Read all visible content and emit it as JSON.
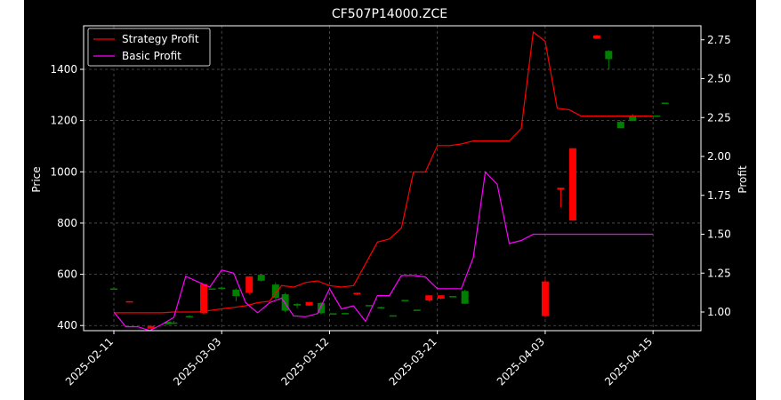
{
  "chart_data": {
    "type": "candlestick+line",
    "title": "CF507P14000.ZCE",
    "ylabel_left": "Price",
    "ylabel_right": "Profit",
    "xlabel": "",
    "grid": true,
    "legend_placement": "top-left",
    "x_tick_labels": [
      "2025-02-11",
      "2025-03-03",
      "2025-03-12",
      "2025-03-21",
      "2025-04-03",
      "2025-04-15"
    ],
    "x_tick_index": [
      0,
      9,
      18,
      27,
      36,
      45
    ],
    "left_axis": {
      "ylim": [
        380,
        1570
      ],
      "ticks": [
        400,
        600,
        800,
        1000,
        1200,
        1400
      ]
    },
    "right_axis": {
      "ylim": [
        0.88,
        2.84
      ],
      "ticks": [
        1.0,
        1.25,
        1.5,
        1.75,
        2.0,
        2.25,
        2.5,
        2.75
      ],
      "tick_labels": [
        "1.00",
        "1.25",
        "1.50",
        "1.75",
        "2.00",
        "2.25",
        "2.50",
        "2.75"
      ]
    },
    "colors": {
      "up": "#008000",
      "down": "#ff0000",
      "strategy": "#ff0000",
      "basic": "#ff00ff",
      "grid": "#555555",
      "axes": "#ffffff"
    },
    "candles": [
      [
        0,
        545,
        545,
        545,
        545
      ],
      [
        1,
        495,
        495,
        490,
        490
      ],
      [
        2,
        398,
        402,
        385,
        388
      ],
      [
        3,
        405,
        418,
        405,
        415
      ],
      [
        4,
        410,
        418,
        406,
        412
      ],
      [
        5,
        435,
        440,
        432,
        437
      ],
      [
        6,
        562,
        562,
        445,
        448
      ],
      [
        7,
        545,
        545,
        545,
        545
      ],
      [
        8,
        548,
        552,
        545,
        548
      ],
      [
        9,
        515,
        545,
        495,
        540
      ],
      [
        10,
        592,
        592,
        522,
        528
      ],
      [
        11,
        575,
        600,
        572,
        598
      ],
      [
        12,
        508,
        568,
        502,
        560
      ],
      [
        13,
        458,
        528,
        452,
        522
      ],
      [
        14,
        478,
        488,
        468,
        484
      ],
      [
        15,
        492,
        492,
        476,
        478
      ],
      [
        16,
        448,
        492,
        444,
        488
      ],
      [
        17,
        448,
        448,
        448,
        448
      ],
      [
        18,
        448,
        450,
        446,
        449
      ],
      [
        19,
        528,
        528,
        518,
        522
      ],
      [
        20,
        480,
        480,
        480,
        480
      ],
      [
        21,
        472,
        474,
        470,
        472
      ],
      [
        22,
        440,
        440,
        440,
        440
      ],
      [
        23,
        500,
        500,
        500,
        500
      ],
      [
        24,
        462,
        462,
        462,
        462
      ],
      [
        25,
        518,
        518,
        495,
        498
      ],
      [
        26,
        518,
        518,
        502,
        505
      ],
      [
        27,
        515,
        515,
        515,
        515
      ],
      [
        28,
        485,
        540,
        485,
        535
      ],
      [
        29,
        572,
        580,
        433,
        437
      ],
      [
        30,
        938,
        938,
        862,
        930
      ],
      [
        31,
        1092,
        1092,
        808,
        810
      ],
      [
        32,
        1532,
        1535,
        1518,
        1520
      ],
      [
        33,
        1440,
        1475,
        1400,
        1472
      ],
      [
        34,
        1170,
        1200,
        1170,
        1195
      ],
      [
        35,
        1198,
        1225,
        1198,
        1220
      ],
      [
        36,
        1220,
        1220,
        1220,
        1220
      ],
      [
        37,
        1270,
        1270,
        1270,
        1270
      ]
    ],
    "candle_x": [
      0,
      1.3,
      3.1,
      4.5,
      5.0,
      6.3,
      7.5,
      8.2,
      9.0,
      10.2,
      11.3,
      12.3,
      13.5,
      14.3,
      15.3,
      16.3,
      17.3,
      18.3,
      19.3,
      20.3,
      21.3,
      22.3,
      23.3,
      24.3,
      25.3,
      26.3,
      27.3,
      28.3,
      29.3,
      36.0,
      37.3,
      38.3,
      40.3,
      41.3,
      42.3,
      43.3,
      45.3,
      46.0
    ],
    "series": [
      {
        "name": "Strategy Profit",
        "x": [
          0,
          2,
          4,
          5,
          6,
          7,
          8,
          9,
          10,
          11,
          12,
          13,
          14,
          15,
          16,
          17,
          18,
          19,
          20,
          21,
          22,
          23,
          24,
          25,
          26,
          27,
          28,
          29,
          30,
          31,
          32,
          33,
          34,
          35,
          36,
          37,
          38,
          39,
          40,
          41,
          42,
          43,
          44,
          45
        ],
        "values": [
          0.995,
          0.995,
          0.995,
          1.0,
          1.0,
          1.0,
          1.01,
          1.02,
          1.03,
          1.04,
          1.06,
          1.07,
          1.17,
          1.16,
          1.19,
          1.2,
          1.17,
          1.16,
          1.17,
          1.31,
          1.45,
          1.47,
          1.54,
          1.9,
          1.9,
          2.07,
          2.07,
          2.08,
          2.1,
          2.1,
          2.1,
          2.1,
          2.18,
          2.8,
          2.74,
          2.31,
          2.3,
          2.26,
          2.26,
          2.26,
          2.26,
          2.26,
          2.26,
          2.26
        ]
      },
      {
        "name": "Basic Profit",
        "x": [
          0,
          1,
          2,
          3,
          4,
          5,
          6,
          7,
          8,
          9,
          10,
          11,
          12,
          13,
          14,
          15,
          16,
          17,
          18,
          19,
          20,
          21,
          22,
          23,
          24,
          25,
          26,
          27,
          28,
          29,
          30,
          31,
          32,
          33,
          34,
          35,
          36,
          37,
          38,
          39,
          40,
          41,
          42,
          43,
          44,
          45
        ],
        "values": [
          1.0,
          0.905,
          0.905,
          0.88,
          0.92,
          0.965,
          1.23,
          1.195,
          1.16,
          1.27,
          1.25,
          1.06,
          0.995,
          1.06,
          1.09,
          0.975,
          0.97,
          0.99,
          1.15,
          1.02,
          1.04,
          0.94,
          1.105,
          1.105,
          1.235,
          1.235,
          1.225,
          1.15,
          1.15,
          1.15,
          1.35,
          1.9,
          1.82,
          1.44,
          1.46,
          1.5,
          1.5,
          1.5,
          1.5,
          1.5,
          1.5,
          1.5,
          1.5,
          1.5,
          1.5,
          1.5
        ]
      }
    ]
  }
}
